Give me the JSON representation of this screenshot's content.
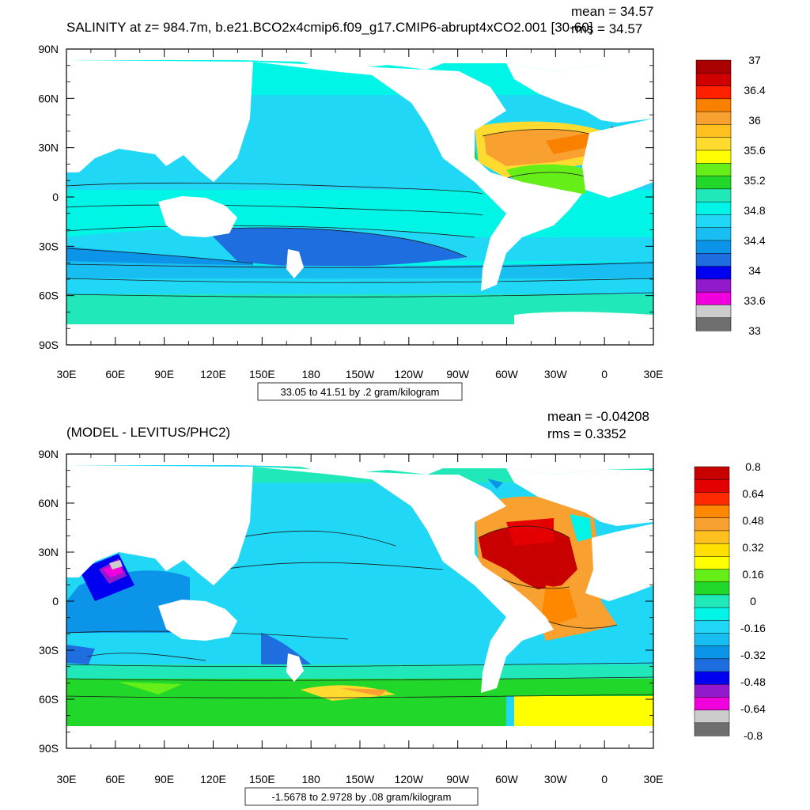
{
  "colors": {
    "land": "#ffffff",
    "frame": "#000000",
    "contour": "#1a1a1a"
  },
  "panels": [
    {
      "title": "SALINITY at z= 984.7m, b.e21.BCO2x4cmip6.f09_g17.CMIP6-abrupt4xCO2.001 [30-60]",
      "mean": "mean = 34.57",
      "rms": "rms = 34.57",
      "range_label": "33.05 to 41.51 by .2 gram/kilogram",
      "lat_ticks": [
        "90N",
        "60N",
        "30N",
        "0",
        "30S",
        "60S",
        "90S"
      ],
      "lon_ticks": [
        "30E",
        "60E",
        "90E",
        "120E",
        "150E",
        "180",
        "150W",
        "120W",
        "90W",
        "60W",
        "30W",
        "0",
        "30E"
      ],
      "colorbar": {
        "labels": [
          "37",
          "36.4",
          "36",
          "35.6",
          "35.2",
          "34.8",
          "34.4",
          "34",
          "33.6",
          "33"
        ],
        "colors": [
          "#ab0000",
          "#d00000",
          "#ff2000",
          "#fa8000",
          "#f8a030",
          "#ffc020",
          "#ffdb30",
          "#ffff00",
          "#66ee18",
          "#21d82a",
          "#21e8b8",
          "#00f5e6",
          "#20d8f5",
          "#18bdf2",
          "#0c94e8",
          "#1f6ee0",
          "#0000f0",
          "#9319cd",
          "#f000dc",
          "#cccccc",
          "#6e6e6e"
        ]
      }
    },
    {
      "title": "(MODEL - LEVITUS/PHC2)",
      "mean": "mean = -0.04208",
      "rms": "rms = 0.3352",
      "range_label": "-1.5678 to 2.9728 by .08 gram/kilogram",
      "lat_ticks": [
        "90N",
        "60N",
        "30N",
        "0",
        "30S",
        "60S",
        "90S"
      ],
      "lon_ticks": [
        "30E",
        "60E",
        "90E",
        "120E",
        "150E",
        "180",
        "150W",
        "120W",
        "90W",
        "60W",
        "30W",
        "0",
        "30E"
      ],
      "colorbar": {
        "labels": [
          "0.8",
          "0.64",
          "0.48",
          "0.32",
          "0.16",
          "0",
          "-0.16",
          "-0.32",
          "-0.48",
          "-0.64",
          "-0.8"
        ],
        "colors": [
          "#c80000",
          "#e40000",
          "#ff2a00",
          "#ff8800",
          "#f8a030",
          "#ffc020",
          "#ffe000",
          "#ffff00",
          "#66ee18",
          "#21d82a",
          "#21e8b8",
          "#00f5e6",
          "#20d8f5",
          "#18bdf2",
          "#0c94e8",
          "#1f6ee0",
          "#0000f0",
          "#9319cd",
          "#f000dc",
          "#cccccc",
          "#6e6e6e"
        ]
      }
    }
  ]
}
